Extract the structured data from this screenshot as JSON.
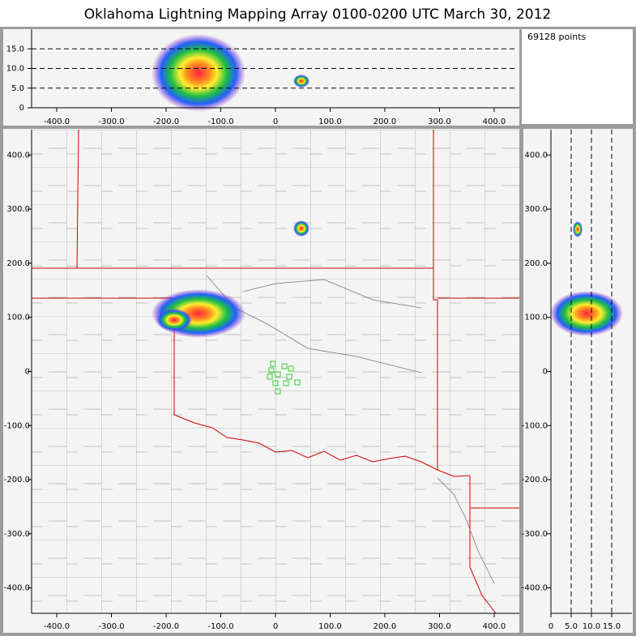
{
  "chart_data": [
    {
      "type": "scatter",
      "title": "Oklahoma Lightning Mapping Array   0100-0200 UTC  March 30, 2012",
      "annotation": "69128 points",
      "xlim": [
        -446,
        446
      ],
      "xticks": [
        {
          "value": -400,
          "label": "-400.0"
        },
        {
          "value": -300,
          "label": "-300.0"
        },
        {
          "value": -200,
          "label": "-200.0"
        },
        {
          "value": -100,
          "label": "-100.0"
        },
        0,
        {
          "value": 100,
          "label": "100.0"
        },
        {
          "value": 200,
          "label": "200.0"
        },
        {
          "value": 300,
          "label": "300.0"
        },
        {
          "value": 400,
          "label": "400.0"
        }
      ],
      "ylim": [
        0,
        20
      ],
      "yticks": [
        0,
        {
          "value": 5,
          "label": "5.0"
        },
        {
          "value": 10,
          "label": "10.0"
        },
        {
          "value": 15,
          "label": "15.0"
        }
      ],
      "grid": true
    },
    {
      "type": "scatter",
      "xlim": [
        -446,
        446
      ],
      "xticks": [
        {
          "value": -400,
          "label": "-400.0"
        },
        {
          "value": -300,
          "label": "-300.0"
        },
        {
          "value": -200,
          "label": "-200.0"
        },
        {
          "value": -100,
          "label": "-100.0"
        },
        0,
        {
          "value": 100,
          "label": "100.0"
        },
        {
          "value": 200,
          "label": "200.0"
        },
        {
          "value": 300,
          "label": "300.0"
        },
        {
          "value": 400,
          "label": "400.0"
        }
      ],
      "ylim": [
        -447,
        447
      ],
      "yticks": [
        {
          "value": -400,
          "label": "-400.0"
        },
        {
          "value": -300,
          "label": "-300.0"
        },
        {
          "value": -200,
          "label": "-200.0"
        },
        {
          "value": -100,
          "label": "-100.0"
        },
        0,
        {
          "value": 100,
          "label": "100.0"
        },
        {
          "value": 200,
          "label": "200.0"
        },
        {
          "value": 300,
          "label": "300.0"
        },
        {
          "value": 400,
          "label": "400.0"
        }
      ],
      "grid": false
    },
    {
      "type": "scatter",
      "xlim": [
        0,
        20
      ],
      "xticks": [
        0,
        {
          "value": 5,
          "label": "5.0"
        },
        {
          "value": 10,
          "label": "10.0"
        },
        {
          "value": 15,
          "label": "15.0"
        }
      ],
      "ylim": [
        -447,
        447
      ],
      "yticks": [
        {
          "value": -400,
          "label": "-400.0"
        },
        {
          "value": -300,
          "label": "-300.0"
        },
        {
          "value": -200,
          "label": "-200.0"
        },
        {
          "value": -100,
          "label": "-100.0"
        },
        0,
        {
          "value": 100,
          "label": "100.0"
        },
        {
          "value": 200,
          "label": "200.0"
        },
        {
          "value": 300,
          "label": "300.0"
        },
        {
          "value": 400,
          "label": "400.0"
        }
      ],
      "grid": true
    }
  ]
}
